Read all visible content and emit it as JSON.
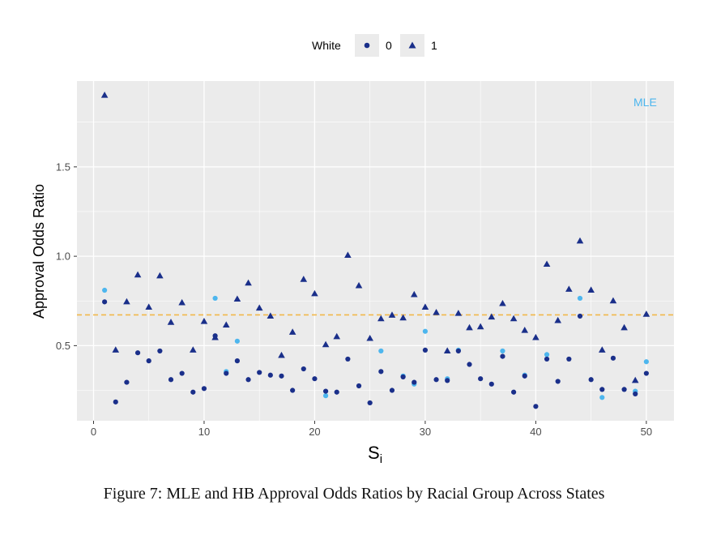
{
  "chart_data": {
    "type": "scatter",
    "ylabel": "Approval Odds Ratio",
    "xlabel_main": "S",
    "xlabel_sub": "i",
    "legend_title": "White",
    "legend_entries": [
      "0",
      "1"
    ],
    "legend_position": "top",
    "annotation": "MLE",
    "xlim": [
      -1.5,
      52.5
    ],
    "ylim": [
      0.08,
      1.98
    ],
    "x_ticks": [
      0,
      10,
      20,
      30,
      40,
      50
    ],
    "x_tick_labels": [
      "0",
      "10",
      "20",
      "30",
      "40",
      "50"
    ],
    "y_ticks": [
      0.5,
      1.0,
      1.5
    ],
    "y_tick_labels": [
      "0.5",
      "1.0",
      "1.5"
    ],
    "grid": true,
    "reference_line": 0.672,
    "colors": {
      "hb": "#1a2f8a",
      "mle": "#4db6ee",
      "overlap": "#5a4a8a",
      "reference": "#f2b84b",
      "panel": "#ebebeb",
      "grid": "#ffffff"
    },
    "series": [
      {
        "name": "0",
        "marker": "circle",
        "x": [
          1,
          2,
          3,
          4,
          5,
          6,
          7,
          8,
          9,
          10,
          11,
          12,
          13,
          14,
          15,
          16,
          17,
          18,
          19,
          20,
          21,
          22,
          23,
          24,
          25,
          26,
          27,
          28,
          29,
          30,
          31,
          32,
          33,
          34,
          35,
          36,
          37,
          38,
          39,
          40,
          41,
          42,
          43,
          44,
          45,
          46,
          47,
          48,
          49,
          50
        ],
        "y": [
          0.745,
          0.185,
          0.295,
          0.46,
          0.415,
          0.47,
          0.31,
          0.345,
          0.24,
          0.26,
          0.555,
          0.345,
          0.415,
          0.31,
          0.35,
          0.335,
          0.33,
          0.25,
          0.37,
          0.315,
          0.245,
          0.24,
          0.425,
          0.275,
          0.18,
          0.355,
          0.25,
          0.325,
          0.295,
          0.475,
          0.31,
          0.305,
          0.47,
          0.395,
          0.315,
          0.285,
          0.44,
          0.24,
          0.33,
          0.16,
          0.425,
          0.3,
          0.425,
          0.665,
          0.31,
          0.255,
          0.43,
          0.255,
          0.23,
          0.345
        ]
      },
      {
        "name": "1",
        "marker": "triangle",
        "x": [
          1,
          2,
          3,
          4,
          5,
          6,
          7,
          8,
          9,
          10,
          11,
          12,
          13,
          14,
          15,
          16,
          17,
          18,
          19,
          20,
          21,
          22,
          23,
          24,
          25,
          26,
          27,
          28,
          29,
          30,
          31,
          32,
          33,
          34,
          35,
          36,
          37,
          38,
          39,
          40,
          41,
          42,
          43,
          44,
          45,
          46,
          47,
          48,
          49,
          50
        ],
        "y": [
          1.9,
          0.475,
          0.745,
          0.895,
          0.715,
          0.89,
          0.63,
          0.74,
          0.475,
          0.635,
          0.545,
          0.615,
          0.76,
          0.85,
          0.71,
          0.665,
          0.445,
          0.575,
          0.87,
          0.79,
          0.505,
          0.55,
          1.005,
          0.835,
          0.54,
          0.65,
          0.67,
          0.655,
          0.785,
          0.715,
          0.685,
          0.47,
          0.68,
          0.6,
          0.605,
          0.66,
          0.735,
          0.65,
          0.585,
          0.545,
          0.955,
          0.64,
          0.815,
          1.085,
          0.81,
          0.475,
          0.75,
          0.6,
          0.305,
          0.675
        ]
      },
      {
        "name": "",
        "marker": "circle",
        "x": [
          1,
          11,
          12,
          13,
          21,
          26,
          28,
          29,
          30,
          32,
          33,
          37,
          39,
          41,
          44,
          46,
          49,
          50
        ],
        "y": [
          0.81,
          0.765,
          0.355,
          0.525,
          0.22,
          0.47,
          0.33,
          0.285,
          0.58,
          0.315,
          0.475,
          0.47,
          0.335,
          0.45,
          0.765,
          0.21,
          0.245,
          0.41
        ]
      }
    ]
  },
  "caption": "Figure 7: MLE and HB Approval Odds Ratios by Racial Group Across States"
}
